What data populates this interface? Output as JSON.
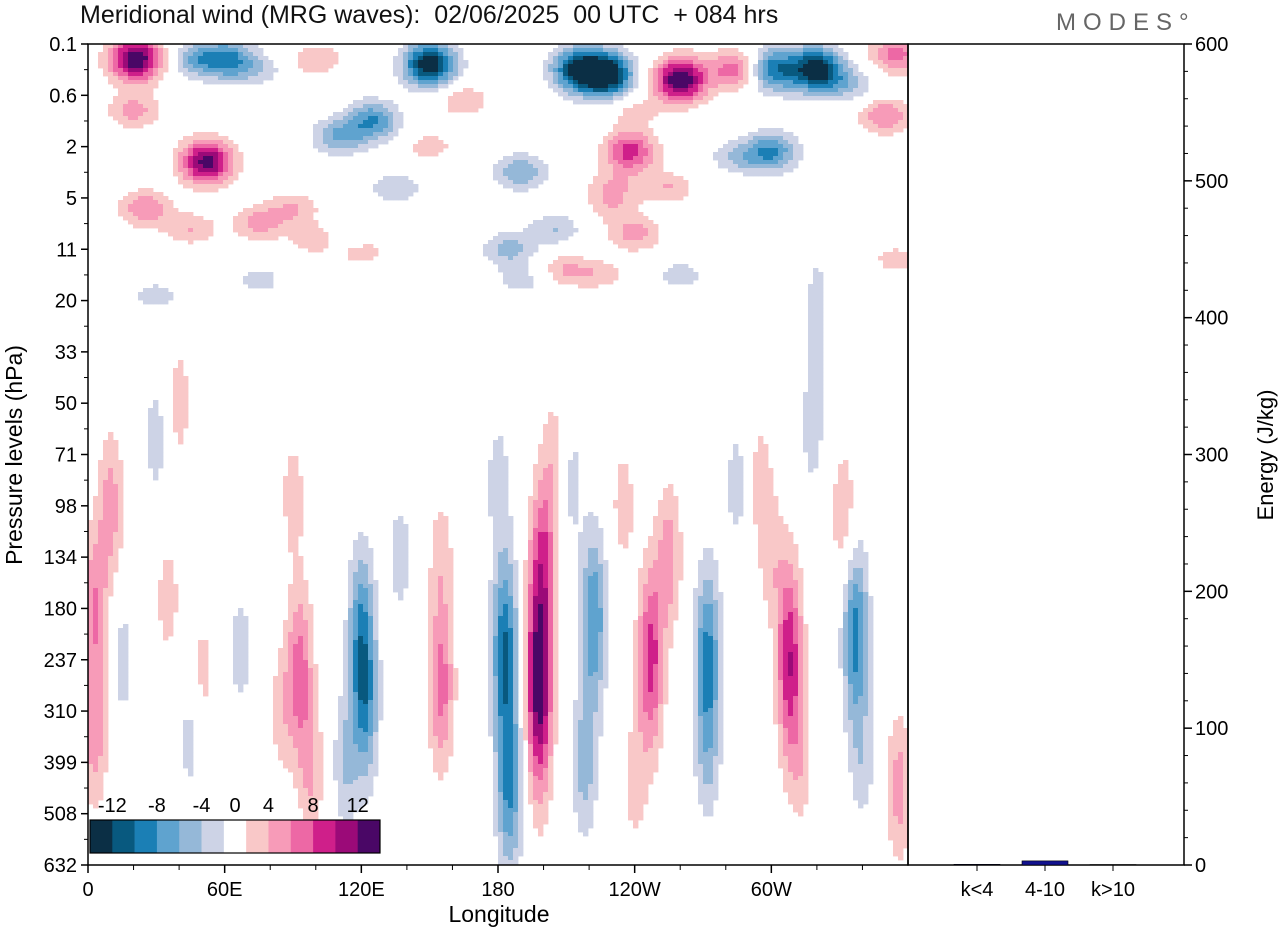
{
  "header": {
    "title": "Meridional wind (MRG waves):  02/06/2025  00 UTC  + 084 hrs",
    "logo": "MODES°"
  },
  "colors": {
    "neg": [
      "#0b2f45",
      "#08597f",
      "#1b7fb5",
      "#5fa3cf",
      "#95b8d8",
      "#cdd3e6"
    ],
    "pos": [
      "#f9c8c8",
      "#f79bb8",
      "#ed68a5",
      "#cf1f8a",
      "#9b0a78",
      "#4a0766"
    ],
    "bar": "#12128f"
  },
  "chart_data": [
    {
      "type": "heatmap",
      "title": "Meridional wind (MRG waves):  02/06/2025  00 UTC  + 084 hrs",
      "xlabel": "Longitude",
      "ylabel": "Pressure levels (hPa)",
      "x_ticks": [
        "0",
        "60E",
        "120E",
        "180",
        "120W",
        "60W"
      ],
      "x_tick_degrees": [
        0,
        60,
        120,
        180,
        240,
        300
      ],
      "xlim": [
        0,
        360
      ],
      "y_levels": [
        "0.1",
        "0.6",
        "2",
        "5",
        "11",
        "20",
        "33",
        "50",
        "71",
        "98",
        "134",
        "180",
        "237",
        "310",
        "399",
        "508",
        "632"
      ],
      "colorbar": {
        "labels": [
          "-12",
          "-8",
          "-4",
          "0",
          "4",
          "8",
          "12"
        ],
        "boundaries": [
          -14,
          -12,
          -10,
          -8,
          -6,
          -4,
          -2,
          2,
          4,
          6,
          8,
          10,
          12,
          14
        ]
      },
      "features": [
        {
          "lon": 21,
          "level": 0.3,
          "value": 14
        },
        {
          "lon": 20,
          "level": 1.3,
          "value": 5
        },
        {
          "lon": 52,
          "level": 2.3,
          "value": 13
        },
        {
          "lon": 25,
          "level": 3.2,
          "value": 6
        },
        {
          "lon": 45,
          "level": 3.6,
          "value": 4
        },
        {
          "lon": 75,
          "level": 3.5,
          "value": 5
        },
        {
          "lon": 90,
          "level": 3.2,
          "value": 4
        },
        {
          "lon": 48,
          "level": 0.3,
          "value": -6
        },
        {
          "lon": 62,
          "level": 0.3,
          "value": -8
        },
        {
          "lon": 75,
          "level": 0.5,
          "value": -3
        },
        {
          "lon": 100,
          "level": 0.3,
          "value": 4
        },
        {
          "lon": 110,
          "level": 1.8,
          "value": -6
        },
        {
          "lon": 125,
          "level": 1.5,
          "value": -8
        },
        {
          "lon": 135,
          "level": 2.8,
          "value": -4
        },
        {
          "lon": 115,
          "level": 3.8,
          "value": -3
        },
        {
          "lon": 150,
          "level": 0.4,
          "value": -14
        },
        {
          "lon": 150,
          "level": 2.0,
          "value": 3
        },
        {
          "lon": 120,
          "level": 4.0,
          "value": 4
        },
        {
          "lon": 100,
          "level": 3.8,
          "value": 4
        },
        {
          "lon": 165,
          "level": 1.1,
          "value": 4
        },
        {
          "lon": 190,
          "level": 2.5,
          "value": -6
        },
        {
          "lon": 205,
          "level": 3.6,
          "value": -4
        },
        {
          "lon": 185,
          "level": 4.0,
          "value": -5
        },
        {
          "lon": 190,
          "level": 4.6,
          "value": -3
        },
        {
          "lon": 210,
          "level": 4.4,
          "value": 4
        },
        {
          "lon": 225,
          "level": 4.5,
          "value": 3
        },
        {
          "lon": 215,
          "level": 0.5,
          "value": -12
        },
        {
          "lon": 228,
          "level": 0.6,
          "value": -14
        },
        {
          "lon": 240,
          "level": 1.3,
          "value": 3
        },
        {
          "lon": 238,
          "level": 2.1,
          "value": 9
        },
        {
          "lon": 230,
          "level": 2.8,
          "value": 4
        },
        {
          "lon": 260,
          "level": 0.7,
          "value": 14
        },
        {
          "lon": 285,
          "level": 0.5,
          "value": 8
        },
        {
          "lon": 300,
          "level": 0.5,
          "value": -10
        },
        {
          "lon": 320,
          "level": 0.5,
          "value": -14
        },
        {
          "lon": 335,
          "level": 0.8,
          "value": -4
        },
        {
          "lon": 255,
          "level": 2.8,
          "value": 4
        },
        {
          "lon": 285,
          "level": 2.2,
          "value": -4
        },
        {
          "lon": 300,
          "level": 2.1,
          "value": -8
        },
        {
          "lon": 325,
          "level": 3.2,
          "value": 2
        },
        {
          "lon": 350,
          "level": 1.4,
          "value": 6
        },
        {
          "lon": 355,
          "level": 0.2,
          "value": 7
        },
        {
          "lon": 355,
          "level": 4.2,
          "value": 3
        },
        {
          "lon": 230,
          "level": 3.2,
          "value": 3
        },
        {
          "lon": 240,
          "level": 3.7,
          "value": 5
        },
        {
          "lon": 260,
          "level": 4.5,
          "value": -3
        },
        {
          "lon": 75,
          "level": 4.6,
          "value": -3
        },
        {
          "lon": 30,
          "level": 4.9,
          "value": -3
        },
        {
          "lon": 320,
          "level": 5.2,
          "value": -3
        },
        {
          "lon": 100,
          "level": 5.8,
          "value": -2
        },
        {
          "lon": 40,
          "level": 7.0,
          "value": 3
        },
        {
          "lon": 30,
          "level": 7.7,
          "value": -3
        },
        {
          "lon": 10,
          "level": 9.0,
          "value": 5
        },
        {
          "lon": 3,
          "level": 11.0,
          "value": 6
        },
        {
          "lon": 3,
          "level": 13.5,
          "value": 5
        },
        {
          "lon": 15,
          "level": 12.0,
          "value": -3
        },
        {
          "lon": 35,
          "level": 10.8,
          "value": 3
        },
        {
          "lon": 50,
          "level": 12.3,
          "value": 3
        },
        {
          "lon": 45,
          "level": 13.5,
          "value": -3
        },
        {
          "lon": 67,
          "level": 11.8,
          "value": -3
        },
        {
          "lon": 85,
          "level": 13.0,
          "value": 3
        },
        {
          "lon": 93,
          "level": 12.2,
          "value": 7
        },
        {
          "lon": 98,
          "level": 14.2,
          "value": 4
        },
        {
          "lon": 120,
          "level": 11.5,
          "value": -8
        },
        {
          "lon": 122,
          "level": 13.0,
          "value": -6
        },
        {
          "lon": 113,
          "level": 14.0,
          "value": -4
        },
        {
          "lon": 137,
          "level": 10.0,
          "value": -3
        },
        {
          "lon": 155,
          "level": 12.5,
          "value": 7
        },
        {
          "lon": 155,
          "level": 10.0,
          "value": 3
        },
        {
          "lon": 183,
          "level": 11.8,
          "value": -10
        },
        {
          "lon": 185,
          "level": 14.5,
          "value": -8
        },
        {
          "lon": 180,
          "level": 8.5,
          "value": -3
        },
        {
          "lon": 198,
          "level": 12.4,
          "value": 14
        },
        {
          "lon": 200,
          "level": 9.8,
          "value": 6
        },
        {
          "lon": 205,
          "level": 8.0,
          "value": 3
        },
        {
          "lon": 222,
          "level": 11.2,
          "value": -8
        },
        {
          "lon": 218,
          "level": 14.0,
          "value": -5
        },
        {
          "lon": 212,
          "level": 8.5,
          "value": -3
        },
        {
          "lon": 247,
          "level": 12.0,
          "value": 9
        },
        {
          "lon": 240,
          "level": 14.4,
          "value": 3
        },
        {
          "lon": 235,
          "level": 9.0,
          "value": 3
        },
        {
          "lon": 255,
          "level": 10.0,
          "value": 5
        },
        {
          "lon": 272,
          "level": 12.0,
          "value": -9
        },
        {
          "lon": 272,
          "level": 14.0,
          "value": -3
        },
        {
          "lon": 285,
          "level": 8.6,
          "value": -3
        },
        {
          "lon": 300,
          "level": 10.0,
          "value": 3
        },
        {
          "lon": 308,
          "level": 12.0,
          "value": 10
        },
        {
          "lon": 313,
          "level": 14.0,
          "value": 3
        },
        {
          "lon": 295,
          "level": 8.5,
          "value": 3
        },
        {
          "lon": 318,
          "level": 7.5,
          "value": -3
        },
        {
          "lon": 332,
          "level": 9.2,
          "value": 4
        },
        {
          "lon": 337,
          "level": 11.5,
          "value": -9
        },
        {
          "lon": 340,
          "level": 14.0,
          "value": -3
        },
        {
          "lon": 356,
          "level": 14.5,
          "value": 5
        },
        {
          "lon": 90,
          "level": 8.8,
          "value": 3
        }
      ]
    },
    {
      "type": "bar",
      "ylabel": "Energy (J/kg)",
      "categories": [
        "k<4",
        "4-10",
        "k>10"
      ],
      "values": [
        0.5,
        3,
        0.3
      ],
      "ylim": [
        0,
        600
      ],
      "y_ticks": [
        0,
        100,
        200,
        300,
        400,
        500,
        600
      ]
    }
  ]
}
